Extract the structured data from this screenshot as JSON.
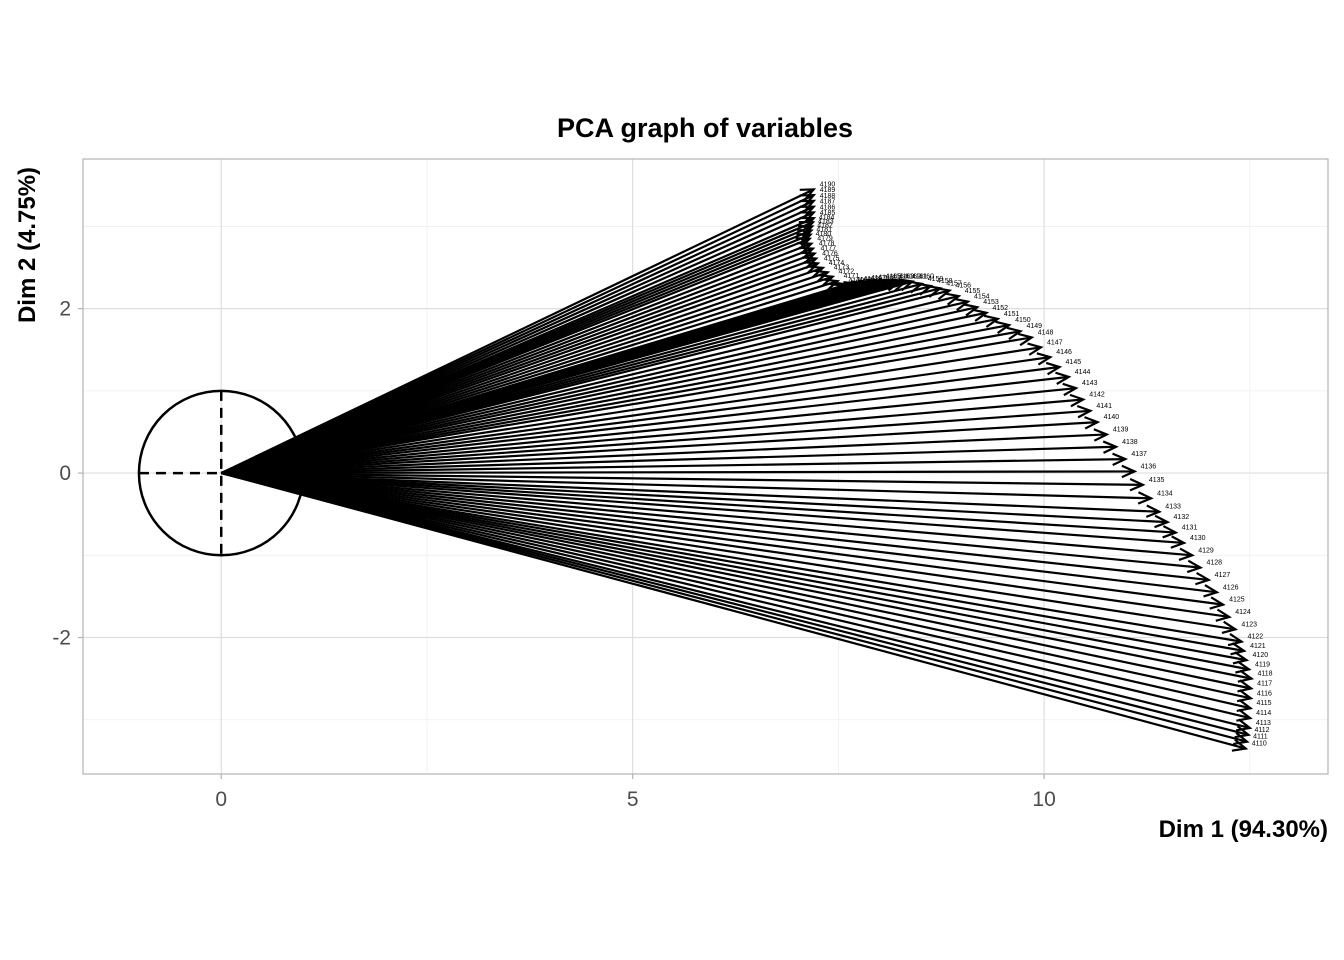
{
  "chart_data": {
    "type": "scatter",
    "subtype": "pca-correlation-circle-arrows",
    "title": "PCA graph of variables",
    "xlabel": "Dim 1 (94.30%)",
    "ylabel": "Dim 2 (4.75%)",
    "xlim": [
      -1.68,
      13.45
    ],
    "ylim": [
      -3.66,
      3.82
    ],
    "x_ticks": [
      0,
      5,
      10
    ],
    "y_ticks": [
      -2,
      0,
      2
    ],
    "grid": true,
    "unit_circle": {
      "center": [
        0,
        0
      ],
      "radius": 1,
      "crosshair": "dashed"
    },
    "arrow_origin": [
      0,
      0
    ],
    "label_range": {
      "first": 4110,
      "last": 4190
    },
    "variables_keypoints": [
      {
        "label": 4110,
        "x": 12.45,
        "y": -3.35
      },
      {
        "label": 4113,
        "x": 12.5,
        "y": -3.1
      },
      {
        "label": 4118,
        "x": 12.52,
        "y": -2.5
      },
      {
        "label": 4122,
        "x": 12.4,
        "y": -2.05
      },
      {
        "label": 4126,
        "x": 12.1,
        "y": -1.45
      },
      {
        "label": 4130,
        "x": 11.7,
        "y": -0.85
      },
      {
        "label": 4133,
        "x": 11.4,
        "y": -0.47
      },
      {
        "label": 4136,
        "x": 11.1,
        "y": 0.02
      },
      {
        "label": 4140,
        "x": 10.65,
        "y": 0.62
      },
      {
        "label": 4144,
        "x": 10.3,
        "y": 1.17
      },
      {
        "label": 4148,
        "x": 9.85,
        "y": 1.65
      },
      {
        "label": 4152,
        "x": 9.3,
        "y": 1.95
      },
      {
        "label": 4156,
        "x": 8.85,
        "y": 2.22
      },
      {
        "label": 4160,
        "x": 8.4,
        "y": 2.33
      },
      {
        "label": 4165,
        "x": 8.0,
        "y": 2.33
      },
      {
        "label": 4170,
        "x": 7.55,
        "y": 2.28
      },
      {
        "label": 4175,
        "x": 7.25,
        "y": 2.55
      },
      {
        "label": 4180,
        "x": 7.15,
        "y": 2.85
      },
      {
        "label": 4185,
        "x": 7.2,
        "y": 3.1
      },
      {
        "label": 4190,
        "x": 7.2,
        "y": 3.45
      }
    ]
  }
}
